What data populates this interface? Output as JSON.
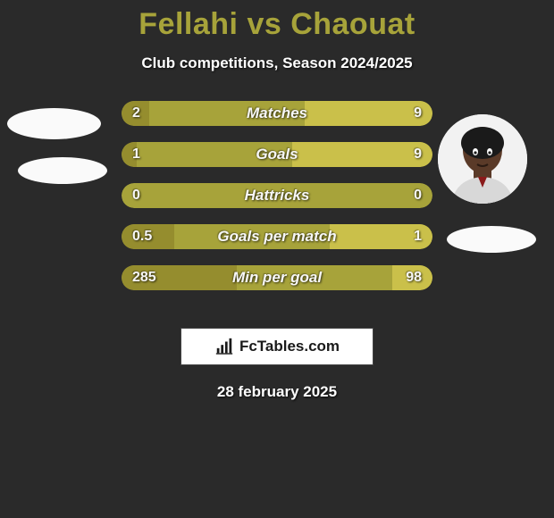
{
  "header": {
    "title": "Fellahi vs Chaouat",
    "title_color": "#a7a33a",
    "title_fontsize": 34,
    "subtitle": "Club competitions, Season 2024/2025",
    "subtitle_color": "#ffffff",
    "subtitle_fontsize": 17
  },
  "background_color": "#2a2a2a",
  "players": {
    "left": {
      "name": "Fellahi",
      "has_photo": false
    },
    "right": {
      "name": "Chaouat",
      "has_photo": true
    }
  },
  "comparison": {
    "track_color": "#a7a33a",
    "left_color": "#958d2e",
    "right_color": "#cac04a",
    "label_color": "#ffffff",
    "value_color": "#ffffff",
    "label_fontsize": 17,
    "value_fontsize": 16,
    "rows": [
      {
        "label": "Matches",
        "left": "2",
        "right": "9",
        "left_pct": 9,
        "right_pct": 41
      },
      {
        "label": "Goals",
        "left": "1",
        "right": "9",
        "left_pct": 5,
        "right_pct": 45
      },
      {
        "label": "Hattricks",
        "left": "0",
        "right": "0",
        "left_pct": 0,
        "right_pct": 0
      },
      {
        "label": "Goals per match",
        "left": "0.5",
        "right": "1",
        "left_pct": 17,
        "right_pct": 33
      },
      {
        "label": "Min per goal",
        "left": "285",
        "right": "98",
        "left_pct": 37,
        "right_pct": 13
      }
    ]
  },
  "branding": {
    "icon": "bar-chart-icon",
    "text": "FcTables.com",
    "bg_color": "#ffffff",
    "text_color": "#1a1a1a"
  },
  "date": "28 february 2025"
}
